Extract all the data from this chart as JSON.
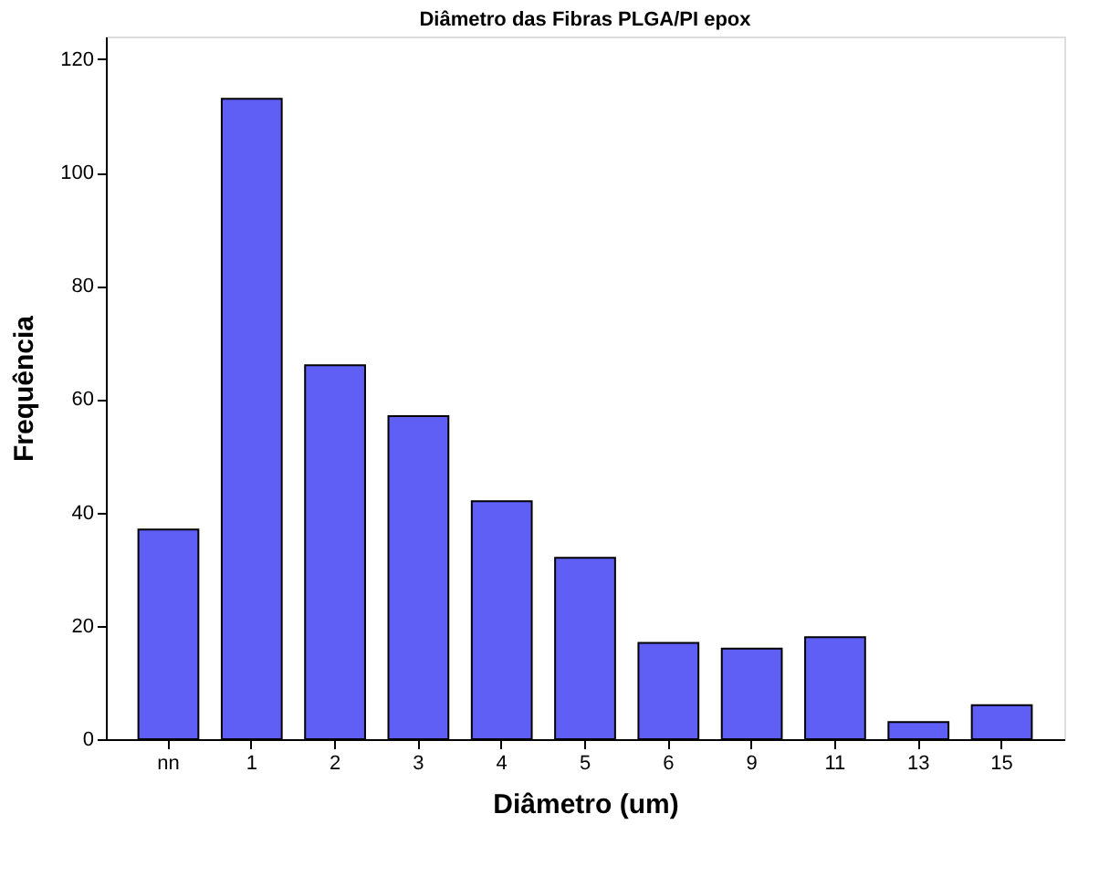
{
  "chart_data": {
    "type": "bar",
    "title": "Diâmetro das Fibras PLGA/PI epox",
    "xlabel": "Diâmetro (um)",
    "ylabel": "Frequência",
    "categories": [
      "nn",
      "1",
      "2",
      "3",
      "4",
      "5",
      "6",
      "9",
      "11",
      "13",
      "15"
    ],
    "values": [
      37,
      113,
      66,
      57,
      42,
      32,
      17,
      16,
      18,
      3,
      6
    ],
    "color": "#5f5ff5",
    "ylim": [
      0,
      124
    ],
    "yticks": [
      0,
      20,
      40,
      60,
      80,
      100,
      120
    ],
    "grid": false
  }
}
